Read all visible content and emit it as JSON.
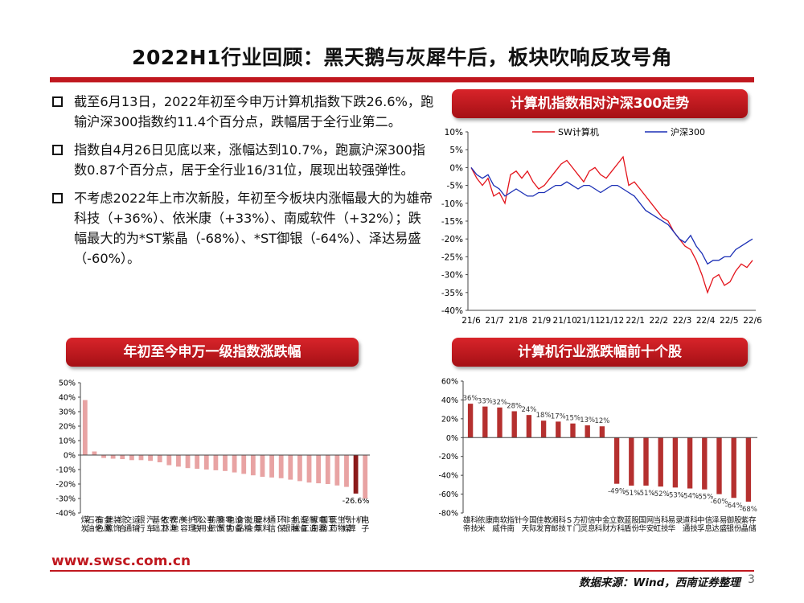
{
  "page": {
    "title": "2022H1行业回顾：黑天鹅与灰犀牛后，板块吹响反攻号角",
    "footer_url": "www.swsc.com.cn",
    "source": "数据来源：Wind，西南证券整理",
    "page_number": "3"
  },
  "bullets": [
    "截至6月13日，2022年初至今申万计算机指数下跌26.6%，跑输沪深300指数约11.4个百分点，跌幅居于全行业第二。",
    "指数自4月26日见底以来，涨幅达到10.7%，跑赢沪深300指数0.87个百分点，居于全行业16/31位，展现出较强弹性。",
    "不考虑2022年上市次新股，年初至今板块内涨幅最大的为雄帝科技（+36%）、依米康（+33%）、南威软件（+32%）；跌幅最大的为*ST紫晶（-68%）、*ST御银（-64%）、泽达易盛（-60%）。"
  ],
  "colors": {
    "accent": "#c0181f",
    "bar": "#c0393b",
    "bar_light": "#e8a3a3",
    "sw": "#e3131b",
    "hs300": "#1b2fb5"
  },
  "chart_data": [
    {
      "type": "line",
      "title": "计算机指数相对沪深300走势",
      "x_ticks": [
        "21/6",
        "21/7",
        "21/8",
        "21/9",
        "21/10",
        "21/11",
        "21/12",
        "22/1",
        "22/2",
        "22/3",
        "22/4",
        "22/5",
        "22/6"
      ],
      "y_ticks": [
        "10%",
        "5%",
        "0%",
        "-5%",
        "-10%",
        "-15%",
        "-20%",
        "-25%",
        "-30%",
        "-35%",
        "-40%"
      ],
      "ylim": [
        -40,
        10
      ],
      "legend": "top",
      "series": [
        {
          "name": "SW计算机",
          "color": "#e3131b",
          "values": [
            0,
            -3,
            -5,
            -3,
            -8,
            -7,
            -10,
            -2,
            -1,
            -3,
            -1,
            -4,
            -6,
            -5,
            -3,
            -1,
            1,
            2,
            0,
            -2,
            -4,
            -1,
            0,
            -2,
            -3,
            -1,
            1,
            3,
            -5,
            -4,
            -6,
            -8,
            -10,
            -12,
            -14,
            -15,
            -18,
            -20,
            -22,
            -23,
            -26,
            -30,
            -35,
            -31,
            -30,
            -33,
            -32,
            -29,
            -27,
            -28,
            -26
          ]
        },
        {
          "name": "沪深300",
          "color": "#1b2fb5",
          "values": [
            0,
            -2,
            -3,
            -2,
            -5,
            -6,
            -8,
            -7,
            -6,
            -7,
            -8,
            -8,
            -7,
            -7,
            -6,
            -5,
            -5,
            -4,
            -5,
            -6,
            -5,
            -5,
            -6,
            -7,
            -6,
            -5,
            -5,
            -6,
            -7,
            -8,
            -10,
            -12,
            -13,
            -14,
            -15,
            -16,
            -18,
            -20,
            -21,
            -19,
            -22,
            -24,
            -27,
            -26,
            -26,
            -25,
            -25,
            -23,
            -22,
            -21,
            -20
          ]
        }
      ]
    },
    {
      "type": "bar",
      "title": "年初至今申万一级指数涨跌幅",
      "y_ticks": [
        "50%",
        "40%",
        "30%",
        "20%",
        "10%",
        "0%",
        "-10%",
        "-20%",
        "-30%",
        "-40%"
      ],
      "ylim": [
        -40,
        50
      ],
      "categories": [
        "煤炭",
        "石油石化",
        "有色金属",
        "建筑装饰",
        "综合",
        "交通运输",
        "银行",
        "汽车",
        "基础化工",
        "农林牧渔",
        "房地产",
        "美容护理",
        "钢铁",
        "公用事业",
        "纺织服饰",
        "商贸零售",
        "电力设备",
        "食品饮料",
        "社会服务",
        "建筑材料",
        "通信",
        "环保",
        "非银金融",
        "机械设备",
        "轻工制造",
        "家用电器",
        "国防军工",
        "医药生物",
        "传媒",
        "计算机",
        "电子"
      ],
      "values": [
        38,
        2.5,
        -2,
        -2.5,
        -2.8,
        -3.5,
        -3.5,
        -4,
        -5,
        -7,
        -8,
        -9,
        -9.5,
        -10,
        -10.5,
        -11,
        -12,
        -13,
        -14,
        -15,
        -15.5,
        -16,
        -17,
        -18,
        -19,
        -19.5,
        -20,
        -21,
        -22,
        -26.6,
        -30
      ],
      "highlight_label": "-26.6%",
      "highlight_category": "计算机"
    },
    {
      "type": "bar",
      "title": "计算机行业涨跌幅前十个股",
      "y_ticks": [
        "60%",
        "40%",
        "20%",
        "0%",
        "-20%",
        "-40%",
        "-60%",
        "-80%"
      ],
      "ylim": [
        -80,
        60
      ],
      "categories": [
        "雄帝科技",
        "依米康",
        "南威软件",
        "指南针",
        "今天国际",
        "佳发教育",
        "湘邮科技",
        "ST方门",
        "初灵信息",
        "中科金财",
        "立方数科",
        "蓝盾股份",
        "国华网安",
        "当虹科技",
        "易华录",
        "道通科技",
        "中孚信息",
        "泽达易盛",
        "御银股份",
        "紫晶存储"
      ],
      "values": [
        36,
        33,
        32,
        28,
        24,
        18,
        17,
        15,
        13,
        12,
        -49,
        -51,
        -51,
        -52,
        -53,
        -54,
        -55,
        -60,
        -64,
        -68
      ],
      "labels": [
        "36%",
        "33%",
        "32%",
        "28%",
        "24%",
        "18%",
        "17%",
        "15%",
        "13%",
        "12%",
        "-49%",
        "-51%",
        "-51%",
        "-52%",
        "-53%",
        "-54%",
        "-55%",
        "-60%",
        "-64%",
        "-68%"
      ]
    }
  ]
}
